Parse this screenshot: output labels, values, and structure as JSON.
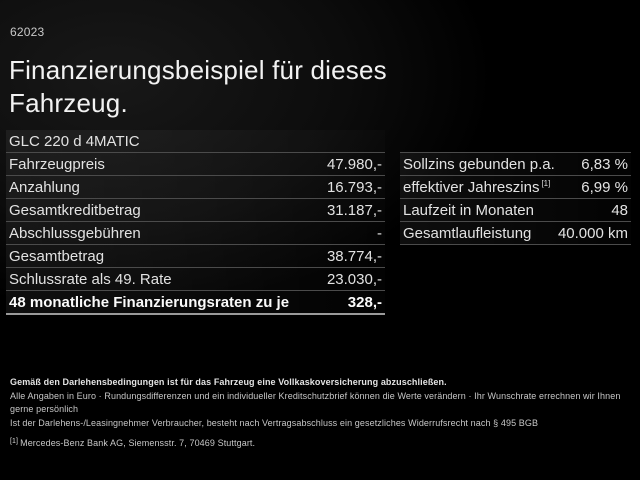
{
  "page": {
    "code": "62023",
    "title_line1": "Finanzierungsbeispiel für dieses",
    "title_line2": "Fahrzeug.",
    "model": "GLC 220 d 4MATIC"
  },
  "financing_table": {
    "rows": [
      {
        "label": "Fahrzeugpreis",
        "value": "47.980,-"
      },
      {
        "label": "Anzahlung",
        "value": "16.793,-"
      },
      {
        "label": "Gesamtkreditbetrag",
        "value": "31.187,-"
      },
      {
        "label": "Abschlussgebühren",
        "value": "-"
      },
      {
        "label": "Gesamtbetrag",
        "value": "38.774,-"
      },
      {
        "label": "Schlussrate als 49. Rate",
        "value": "23.030,-"
      },
      {
        "label": "48 monatliche Finanzierungsraten zu je",
        "value": "328,-"
      }
    ]
  },
  "conditions_table": {
    "rows": [
      {
        "label": "Sollzins gebunden p.a.",
        "value": "6,83 %"
      },
      {
        "label": "effektiver Jahreszins",
        "sup": "[1]",
        "value": "6,99 %"
      },
      {
        "label": "Laufzeit in Monaten",
        "value": "48"
      },
      {
        "label": "Gesamtlaufleistung",
        "value": "40.000 km"
      }
    ]
  },
  "footer": {
    "line1": "Gemäß den Darlehensbedingungen ist für das Fahrzeug eine Vollkaskoversicherung abzuschließen.",
    "line2": "Alle Angaben in Euro · Rundungsdifferenzen und ein individueller Kreditschutzbrief können die Werte verändern · Ihr Wunschrate errechnen wir Ihnen gerne persönlich",
    "line3": "Ist der Darlehens-/Leasingnehmer Verbraucher, besteht nach Vertragsabschluss ein gesetzliches Widerrufsrecht nach § 495 BGB",
    "note_sup": "[1]",
    "note": "Mercedes-Benz Bank AG, Siemensstr. 7, 70469 Stuttgart."
  },
  "colors": {
    "background": "#000000",
    "text": "#e6e6e6",
    "divider": "#4b4b4b",
    "bold_divider": "#9a9a9a"
  }
}
